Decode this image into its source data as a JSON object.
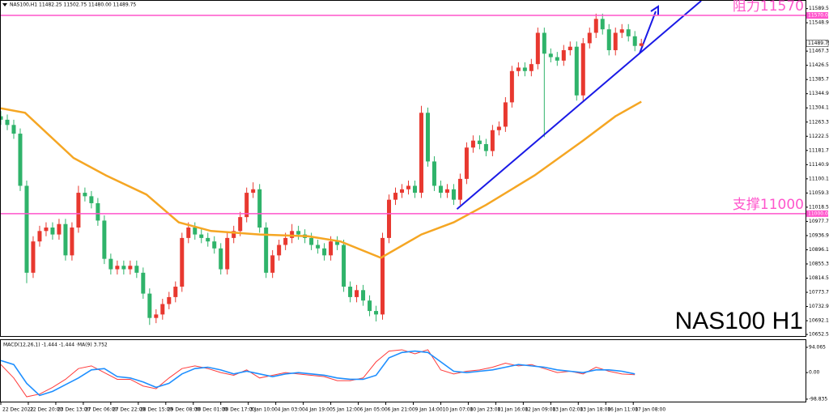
{
  "chart_data": [
    {
      "type": "candlestick",
      "header": "NAS100,H1  11482.25 11502.75 11480.00 11489.75",
      "watermark": "NAS100 H1",
      "up_color": "#e8382f",
      "down_color": "#2fb36a",
      "x": [
        0,
        4,
        8,
        12,
        16,
        20,
        24,
        28,
        32,
        36,
        40,
        44,
        48,
        52,
        56,
        60,
        64,
        68,
        72,
        76,
        80,
        84,
        88,
        92,
        96,
        100,
        104,
        108,
        112,
        116,
        120,
        124,
        128,
        132,
        136,
        140,
        144,
        148,
        152,
        156,
        160,
        164,
        168,
        172,
        176,
        180,
        184,
        188,
        192,
        196,
        200,
        204,
        208,
        212,
        216,
        220,
        224,
        228,
        232,
        236,
        240,
        244,
        248,
        252,
        256,
        260,
        264,
        268,
        272,
        276,
        280,
        284,
        288,
        292,
        296,
        300,
        304,
        308,
        312,
        316,
        320,
        324,
        328,
        332,
        336,
        340,
        344,
        348,
        352,
        356,
        360,
        364,
        368,
        372,
        376,
        380,
        384,
        388,
        392,
        396
      ],
      "open": [
        11280,
        11270,
        11255,
        11230,
        11080,
        10830,
        10920,
        10950,
        10960,
        10940,
        10970,
        10880,
        10960,
        11060,
        11050,
        11030,
        10980,
        10870,
        10840,
        10850,
        10840,
        10850,
        10830,
        10770,
        10700,
        10710,
        10740,
        10760,
        10790,
        10930,
        10960,
        10940,
        10930,
        10920,
        10900,
        10840,
        10930,
        10950,
        10990,
        11060,
        11070,
        10960,
        10830,
        10880,
        10910,
        10930,
        10950,
        10940,
        10930,
        10910,
        10900,
        10880,
        10920,
        10910,
        10790,
        10760,
        10780,
        10750,
        10720,
        10710,
        10930,
        11040,
        11060,
        11070,
        11080,
        11060,
        11290,
        11150,
        11080,
        11060,
        11070,
        11040,
        11100,
        11190,
        11210,
        11200,
        11180,
        11240,
        11250,
        11320,
        11410,
        11420,
        11410,
        11430,
        11520,
        11460,
        11450,
        11440,
        11470,
        11480,
        11340,
        11490,
        11520,
        11560,
        11530,
        11470,
        11520,
        11530,
        11510,
        11482.25
      ],
      "high": [
        11295,
        11285,
        11270,
        11245,
        11095,
        10935,
        10965,
        10975,
        10975,
        10985,
        10985,
        10975,
        11080,
        11075,
        11065,
        11045,
        10995,
        10885,
        10865,
        10865,
        10865,
        10865,
        10845,
        10785,
        10725,
        10755,
        10775,
        10805,
        10945,
        10975,
        10975,
        10955,
        10945,
        10935,
        10915,
        10945,
        10965,
        11005,
        11075,
        11090,
        11085,
        10975,
        10895,
        10925,
        10945,
        10970,
        10965,
        10955,
        10945,
        10925,
        10915,
        10935,
        10935,
        10925,
        10805,
        10795,
        10795,
        10765,
        10735,
        10945,
        11055,
        11075,
        11085,
        11095,
        11095,
        11310,
        11305,
        11165,
        11095,
        11085,
        11085,
        11115,
        11205,
        11225,
        11225,
        11215,
        11255,
        11265,
        11335,
        11425,
        11435,
        11435,
        11445,
        11535,
        11535,
        11475,
        11465,
        11485,
        11495,
        11495,
        11505,
        11535,
        11575,
        11575,
        11545,
        11535,
        11545,
        11545,
        11525,
        11502.75
      ],
      "low": [
        11255,
        11240,
        11215,
        11065,
        10800,
        10815,
        10905,
        10935,
        10925,
        10925,
        10865,
        10865,
        10945,
        11035,
        11015,
        10965,
        10855,
        10825,
        10825,
        10825,
        10825,
        10815,
        10755,
        10680,
        10685,
        10695,
        10725,
        10745,
        10775,
        10915,
        10925,
        10915,
        10905,
        10885,
        10825,
        10825,
        10915,
        10935,
        10975,
        11045,
        10945,
        10815,
        10815,
        10865,
        10895,
        10915,
        10925,
        10915,
        10895,
        10885,
        10865,
        10865,
        10895,
        10775,
        10745,
        10745,
        10735,
        10705,
        10690,
        10695,
        10915,
        11025,
        11045,
        11055,
        11045,
        11045,
        11135,
        11065,
        11045,
        11045,
        11025,
        11025,
        11085,
        11175,
        11185,
        11165,
        11165,
        11225,
        11235,
        11305,
        11395,
        11395,
        11395,
        11415,
        11220,
        11435,
        11425,
        11425,
        11455,
        11325,
        11325,
        11475,
        11505,
        11515,
        11455,
        11455,
        11505,
        11495,
        11467,
        11480
      ],
      "close": [
        11270,
        11255,
        11230,
        11080,
        10830,
        10920,
        10950,
        10960,
        10940,
        10970,
        10880,
        10960,
        11060,
        11050,
        11030,
        10980,
        10870,
        10840,
        10850,
        10840,
        10850,
        10830,
        10770,
        10700,
        10710,
        10740,
        10760,
        10790,
        10930,
        10960,
        10940,
        10930,
        10920,
        10900,
        10840,
        10930,
        10950,
        10990,
        11060,
        11070,
        10960,
        10830,
        10880,
        10910,
        10930,
        10950,
        10940,
        10930,
        10910,
        10900,
        10880,
        10920,
        10910,
        10790,
        10760,
        10780,
        10750,
        10720,
        10710,
        10930,
        11040,
        11060,
        11070,
        11080,
        11060,
        11290,
        11150,
        11080,
        11060,
        11070,
        11040,
        11100,
        11190,
        11210,
        11200,
        11180,
        11240,
        11250,
        11320,
        11410,
        11420,
        11410,
        11430,
        11520,
        11460,
        11450,
        11440,
        11470,
        11480,
        11340,
        11490,
        11520,
        11560,
        11530,
        11470,
        11520,
        11530,
        11510,
        11482.25,
        11489.75
      ],
      "ma": {
        "color": "#f5a623",
        "x": [
          0,
          15,
          45,
          65,
          90,
          110,
          130,
          160,
          190,
          210,
          235,
          260,
          280,
          300,
          330,
          360,
          380,
          396
        ],
        "values": [
          11303,
          11290,
          11160,
          11110,
          11055,
          10975,
          10950,
          10940,
          10935,
          10920,
          10873,
          10940,
          10975,
          11025,
          11110,
          11210,
          11280,
          11322
        ]
      },
      "trendline": {
        "color": "#1a1ae6",
        "x": [
          282,
          433
        ],
        "values": [
          11013,
          11612
        ]
      },
      "hlines": [
        {
          "value": 11570,
          "label": "11570.00",
          "note": "阻力11570",
          "color": "#ff55cc"
        },
        {
          "value": 11000,
          "label": "11000.00",
          "note": "支撑11000",
          "color": "#ff55cc"
        }
      ],
      "xlim": [
        0,
        497.5
      ],
      "ylim": [
        10648,
        11612
      ],
      "yticks": [
        {
          "value": 11589.5,
          "label": "11589.50"
        },
        {
          "value": 11548.9,
          "label": "11548.90"
        },
        {
          "value": 11467.3,
          "label": "11467.30"
        },
        {
          "value": 11426.5,
          "label": "11426.50"
        },
        {
          "value": 11385.7,
          "label": "11385.70"
        },
        {
          "value": 11344.9,
          "label": "11344.90"
        },
        {
          "value": 11304.1,
          "label": "11304.10"
        },
        {
          "value": 11263.3,
          "label": "11263.30"
        },
        {
          "value": 11222.5,
          "label": "11222.50"
        },
        {
          "value": 11181.7,
          "label": "11181.70"
        },
        {
          "value": 11140.9,
          "label": "11140.90"
        },
        {
          "value": 11100.1,
          "label": "11100.10"
        },
        {
          "value": 11059.3,
          "label": "11059.30"
        },
        {
          "value": 11018.5,
          "label": "11018.50"
        },
        {
          "value": 10977.7,
          "label": "10977.70"
        },
        {
          "value": 10936.9,
          "label": "10936.90"
        },
        {
          "value": 10896.1,
          "label": "10896.10"
        },
        {
          "value": 10855.3,
          "label": "10855.30"
        },
        {
          "value": 10814.5,
          "label": "10814.50"
        },
        {
          "value": 10773.7,
          "label": "10773.70"
        },
        {
          "value": 10732.9,
          "label": "10732.90"
        },
        {
          "value": 10692.1,
          "label": "10692.10"
        },
        {
          "value": 10652.5,
          "label": "10652.50"
        }
      ],
      "xticks": [
        {
          "value": 0,
          "label": "22 Dec 2022"
        },
        {
          "value": 17,
          "label": "22 Dec 20:00"
        },
        {
          "value": 34,
          "label": "23 Dec 13:00"
        },
        {
          "value": 51,
          "label": "27 Dec 06:00"
        },
        {
          "value": 68,
          "label": "27 Dec 22:00"
        },
        {
          "value": 85,
          "label": "28 Dec 15:00"
        },
        {
          "value": 102,
          "label": "29 Dec 08:00"
        },
        {
          "value": 119,
          "label": "30 Dec 01:00"
        },
        {
          "value": 136,
          "label": "30 Dec 17:00"
        },
        {
          "value": 153,
          "label": "3 Jan 10:00"
        },
        {
          "value": 170,
          "label": "4 Jan 03:00"
        },
        {
          "value": 187,
          "label": "4 Jan 19:00"
        },
        {
          "value": 204,
          "label": "5 Jan 12:00"
        },
        {
          "value": 221,
          "label": "6 Jan 05:00"
        },
        {
          "value": 238,
          "label": "6 Jan 21:00"
        },
        {
          "value": 255,
          "label": "9 Jan 14:00"
        },
        {
          "value": 272,
          "label": "10 Jan 07:00"
        },
        {
          "value": 289,
          "label": "10 Jan 23:00"
        },
        {
          "value": 306,
          "label": "11 Jan 16:00"
        },
        {
          "value": 323,
          "label": "12 Jan 09:00"
        },
        {
          "value": 340,
          "label": "13 Jan 02:00"
        },
        {
          "value": 357,
          "label": "13 Jan 18:00"
        },
        {
          "value": 374,
          "label": "16 Jan 11:00"
        },
        {
          "value": 391,
          "label": "17 Jan 08:00"
        }
      ]
    },
    {
      "type": "line",
      "title": "MACD(12,26,1) -1.444 -1.444 ·MA(9) 3.752",
      "x": [
        0,
        8,
        16,
        24,
        32,
        40,
        48,
        56,
        64,
        72,
        80,
        88,
        96,
        104,
        112,
        120,
        128,
        136,
        144,
        152,
        160,
        168,
        176,
        184,
        192,
        200,
        208,
        216,
        224,
        232,
        240,
        248,
        256,
        264,
        272,
        280,
        288,
        296,
        304,
        312,
        320,
        328,
        336,
        344,
        352,
        360,
        368,
        376,
        384,
        392
      ],
      "series": [
        {
          "color": "#ff3b3b",
          "values": [
            30,
            -20,
            -90,
            -80,
            -55,
            -25,
            15,
            25,
            0,
            -25,
            -25,
            -50,
            -60,
            -20,
            15,
            25,
            15,
            0,
            -10,
            10,
            -20,
            -10,
            0,
            -5,
            -10,
            -15,
            -30,
            -30,
            -20,
            40,
            80,
            85,
            70,
            85,
            10,
            -5,
            5,
            10,
            20,
            35,
            25,
            30,
            15,
            0,
            5,
            -5,
            20,
            5,
            -5,
            -8
          ]
        },
        {
          "color": "#1e8fff",
          "values": [
            45,
            30,
            -40,
            -85,
            -70,
            -45,
            -20,
            10,
            15,
            -15,
            -20,
            -35,
            -55,
            -40,
            -5,
            15,
            20,
            10,
            -5,
            5,
            -5,
            -15,
            -5,
            0,
            -5,
            -10,
            -20,
            -25,
            -25,
            -10,
            55,
            75,
            80,
            75,
            40,
            5,
            0,
            5,
            10,
            20,
            30,
            25,
            20,
            10,
            5,
            0,
            10,
            10,
            5,
            -5
          ]
        }
      ],
      "xlim": [
        0,
        497.5
      ],
      "ylim": [
        -105,
        118
      ],
      "yticks": [
        {
          "value": 94.065,
          "label": "94.065"
        },
        {
          "value": 0,
          "label": "0.00"
        },
        {
          "value": -98.835,
          "label": "-98.835"
        }
      ]
    }
  ]
}
